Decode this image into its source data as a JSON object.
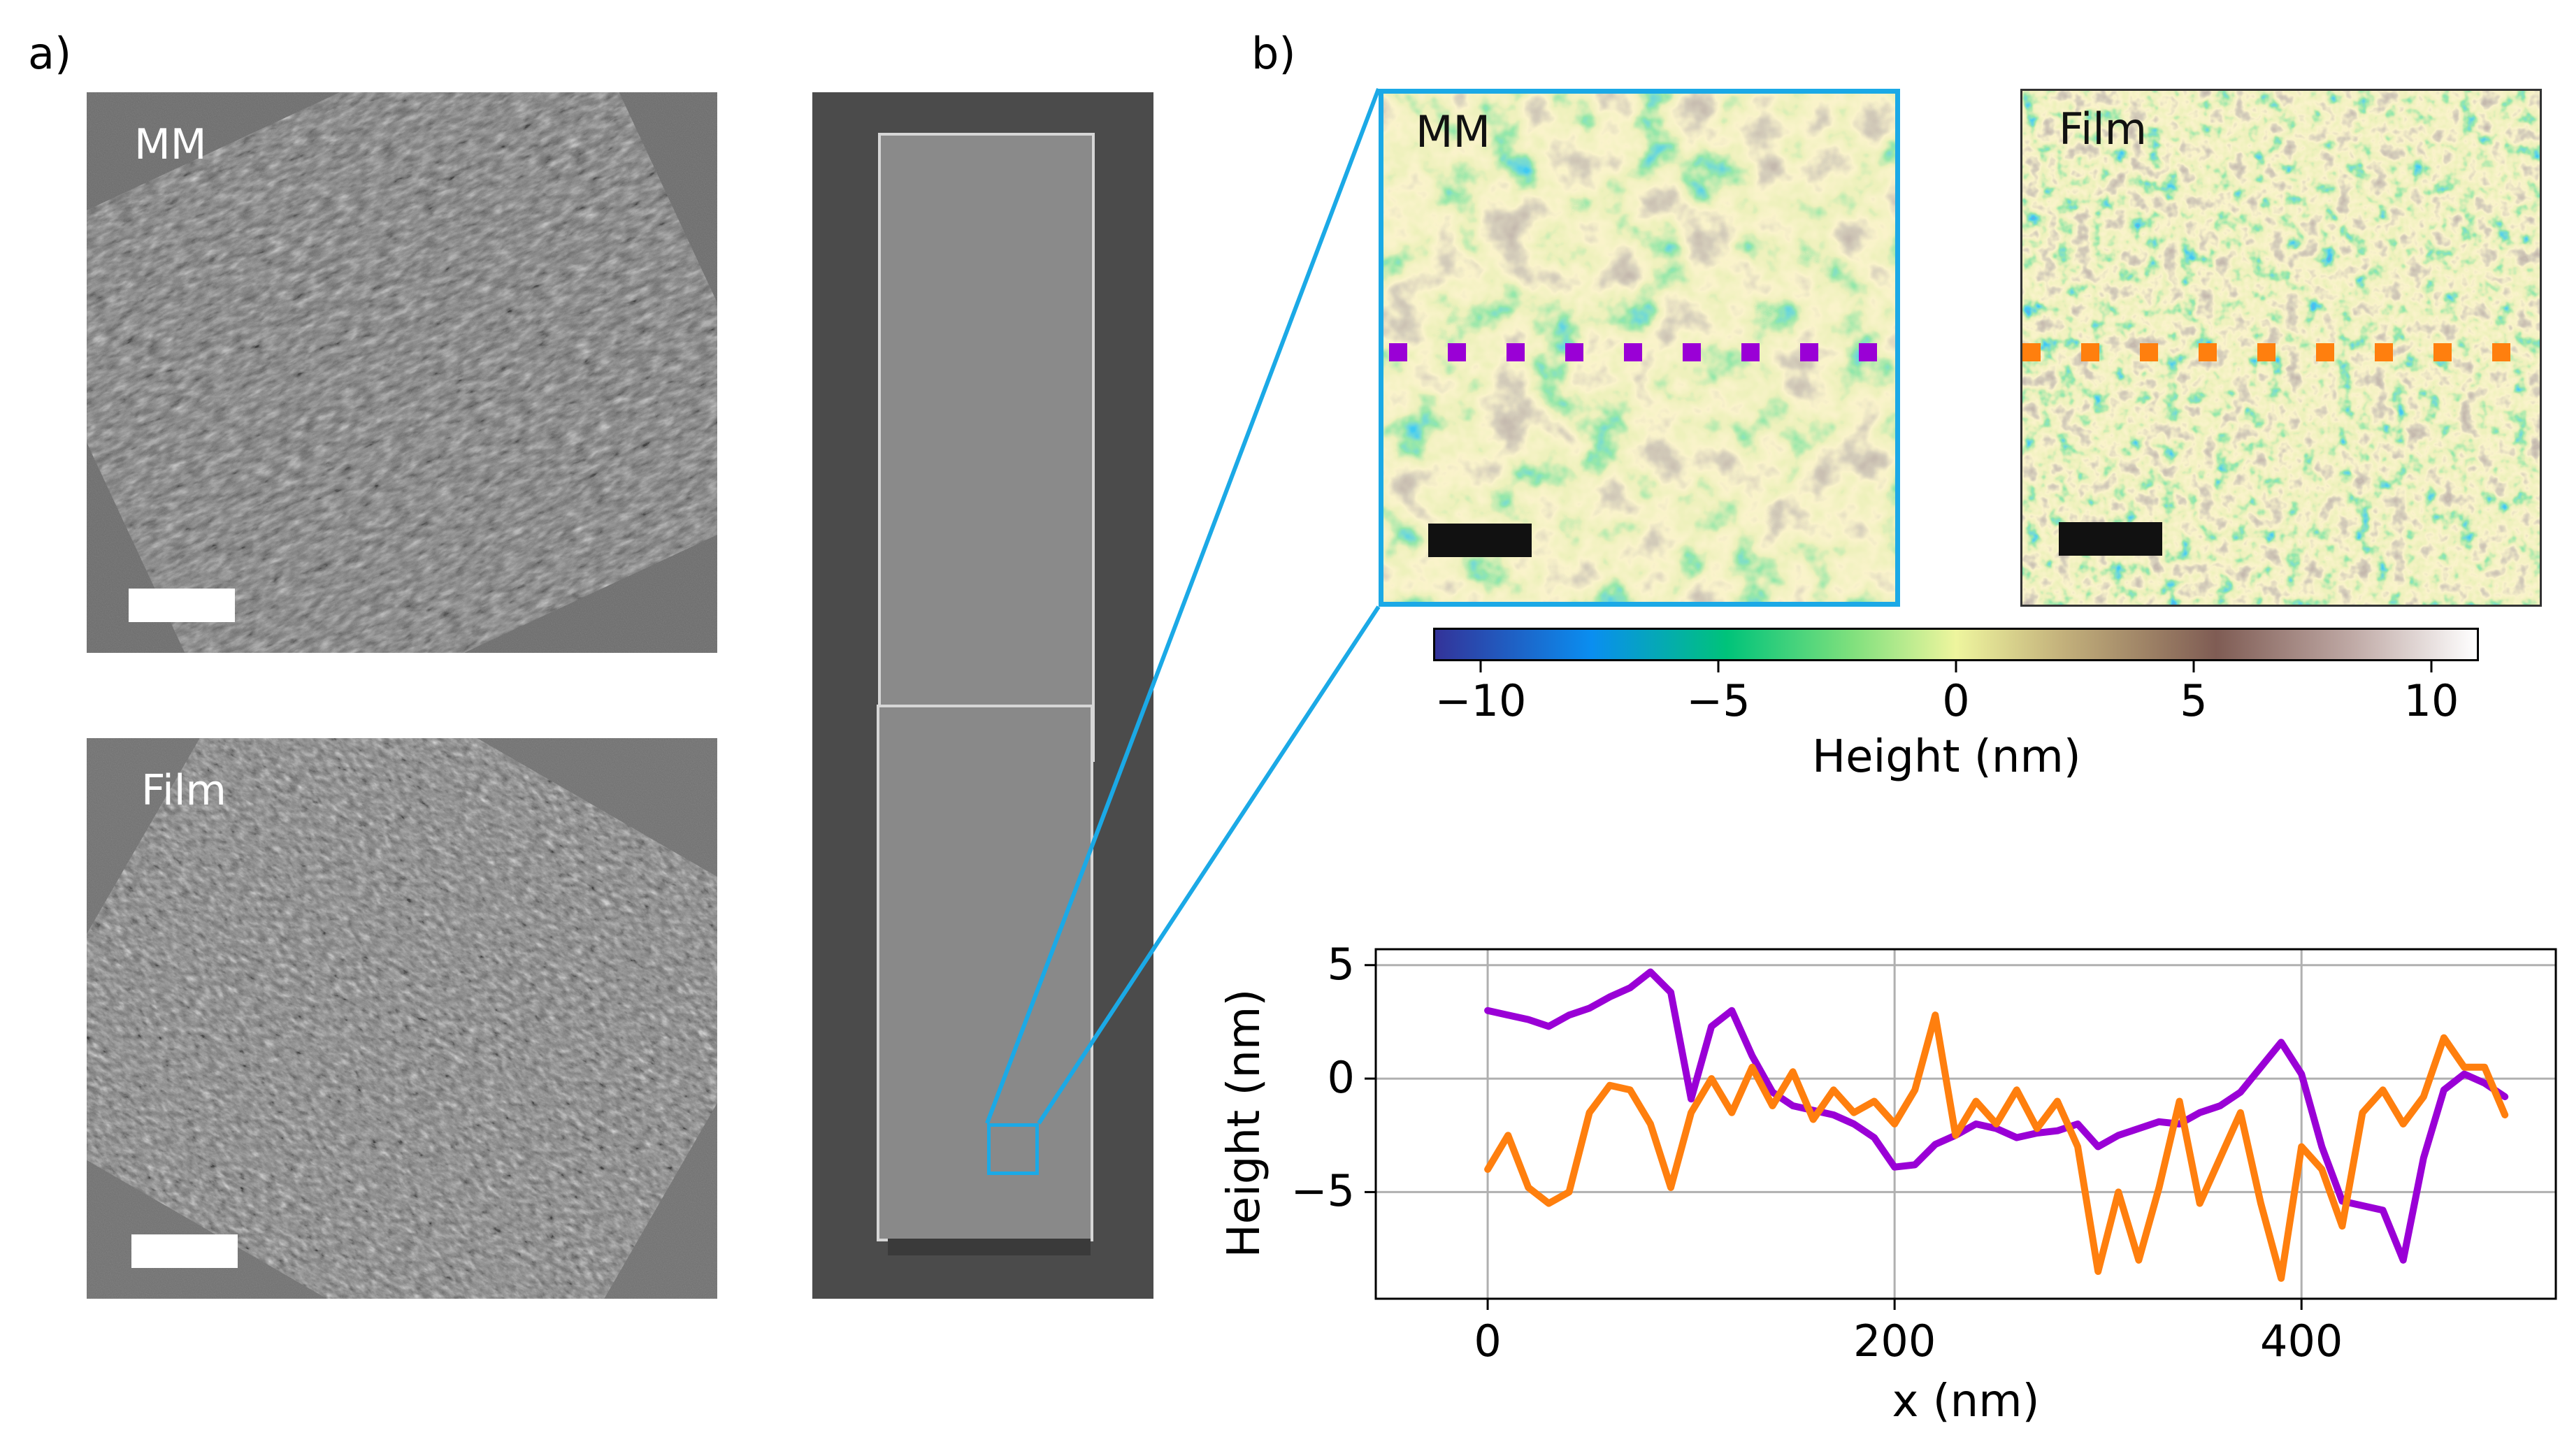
{
  "figure": {
    "panel_a_label": "a)",
    "panel_b_label": "b)",
    "sem_top_label": "MM",
    "sem_bottom_label": "Film",
    "afm_left_label": "MM",
    "afm_right_label": "Film",
    "colors": {
      "highlight_box": "#1ba9e6",
      "mm_line": "#9a00d6",
      "film_line": "#ff7f0e",
      "scalebar_sem": "#ffffff",
      "scalebar_afm": "#111111"
    }
  },
  "colorbar": {
    "label": "Height (nm)",
    "range": [
      -11,
      11
    ],
    "ticks": [
      "−10",
      "−5",
      "0",
      "5",
      "10"
    ],
    "tick_values": [
      -10,
      -5,
      0,
      5,
      10
    ],
    "colormap": "terrain"
  },
  "chart_data": {
    "type": "line",
    "xlabel": "x (nm)",
    "ylabel": "Height (nm)",
    "xlim": [
      -55,
      525
    ],
    "ylim": [
      -9.7,
      5.7
    ],
    "xticks": [
      0,
      200,
      400
    ],
    "xtick_labels": [
      "0",
      "200",
      "400"
    ],
    "yticks": [
      5,
      0,
      -5
    ],
    "ytick_labels": [
      "5",
      "0",
      "−5"
    ],
    "grid": true,
    "series": [
      {
        "color": "#9a00d6",
        "x": [
          0,
          10,
          20,
          30,
          40,
          50,
          60,
          70,
          80,
          90,
          100,
          110,
          120,
          130,
          140,
          150,
          160,
          170,
          180,
          190,
          200,
          210,
          220,
          230,
          240,
          250,
          260,
          270,
          280,
          290,
          300,
          310,
          320,
          330,
          340,
          350,
          360,
          370,
          380,
          390,
          400,
          410,
          420,
          430,
          440,
          450,
          460,
          470,
          480,
          490,
          500
        ],
        "y": [
          3.0,
          2.8,
          2.6,
          2.3,
          2.8,
          3.1,
          3.6,
          4.0,
          4.7,
          3.8,
          -0.9,
          2.3,
          3.0,
          1.0,
          -0.6,
          -1.2,
          -1.4,
          -1.6,
          -2.0,
          -2.6,
          -3.9,
          -3.8,
          -2.9,
          -2.5,
          -2.0,
          -2.2,
          -2.6,
          -2.4,
          -2.3,
          -2.0,
          -3.0,
          -2.5,
          -2.2,
          -1.9,
          -2.0,
          -1.5,
          -1.2,
          -0.6,
          0.5,
          1.6,
          0.2,
          -3.0,
          -5.4,
          -5.6,
          -5.8,
          -8.0,
          -3.5,
          -0.5,
          0.2,
          -0.2,
          -0.8
        ]
      },
      {
        "color": "#ff7f0e",
        "x": [
          0,
          10,
          20,
          30,
          40,
          50,
          60,
          70,
          80,
          90,
          100,
          110,
          120,
          130,
          140,
          150,
          160,
          170,
          180,
          190,
          200,
          210,
          220,
          230,
          240,
          250,
          260,
          270,
          280,
          290,
          300,
          310,
          320,
          330,
          340,
          350,
          360,
          370,
          380,
          390,
          400,
          410,
          420,
          430,
          440,
          450,
          460,
          470,
          480,
          490,
          500
        ],
        "y": [
          -4.0,
          -2.5,
          -4.8,
          -5.5,
          -5.0,
          -1.5,
          -0.3,
          -0.5,
          -2.0,
          -4.8,
          -1.5,
          0.0,
          -1.5,
          0.5,
          -1.2,
          0.3,
          -1.8,
          -0.5,
          -1.5,
          -1.0,
          -2.0,
          -0.5,
          2.8,
          -2.5,
          -1.0,
          -2.0,
          -0.5,
          -2.2,
          -1.0,
          -3.0,
          -8.5,
          -5.0,
          -8.0,
          -4.8,
          -1.0,
          -5.5,
          -3.5,
          -1.5,
          -5.5,
          -8.8,
          -3.0,
          -4.0,
          -6.5,
          -1.5,
          -0.5,
          -2.0,
          -0.8,
          1.8,
          0.5,
          0.5,
          -1.6
        ]
      }
    ]
  }
}
